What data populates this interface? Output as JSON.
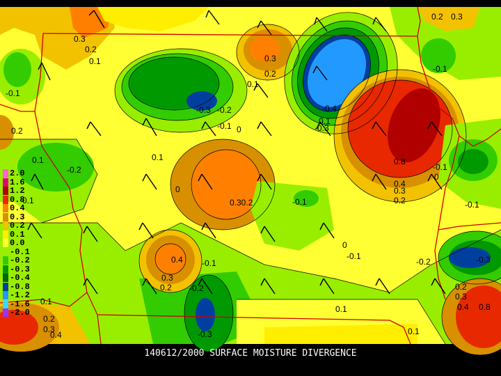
{
  "product": {
    "caption": "140612/2000 SURFACE MOISTURE DIVERGENCE"
  },
  "legend": {
    "items": [
      {
        "label": "2.0",
        "color": "#ff66cc"
      },
      {
        "label": "1.6",
        "color": "#e0007a"
      },
      {
        "label": "1.2",
        "color": "#b00000"
      },
      {
        "label": "0.8",
        "color": "#e82800"
      },
      {
        "label": "0.4",
        "color": "#ff8000"
      },
      {
        "label": "0.3",
        "color": "#d89000"
      },
      {
        "label": "0.2",
        "color": "#f2c200"
      },
      {
        "label": "0.1",
        "color": "#ffee00"
      },
      {
        "label": "0.0",
        "color": "#ffff33"
      },
      {
        "label": "-0.1",
        "color": "#99ee00"
      },
      {
        "label": "-0.2",
        "color": "#33cc00"
      },
      {
        "label": "-0.3",
        "color": "#009900"
      },
      {
        "label": "-0.4",
        "color": "#006a00"
      },
      {
        "label": "-0.8",
        "color": "#003fa0"
      },
      {
        "label": "-1.2",
        "color": "#2299ff"
      },
      {
        "label": "-1.6",
        "color": "#33ddff"
      },
      {
        "label": "-2.0",
        "color": "#9933ff"
      }
    ]
  },
  "contour_labels": [
    "0.2",
    "0.3",
    "0.3",
    "0.2",
    "0.1",
    "0.3",
    "0.2",
    "-0.1",
    "0.1",
    "-0.3",
    "-0.2",
    "-0.1",
    "0",
    "0.1",
    "-0.4",
    "-0.3",
    "0.1",
    "0.8",
    "0.4",
    "0.3",
    "0.2",
    "-0.1",
    "0",
    "-0.1",
    "0.2",
    "0.1",
    "0",
    "0.30.2",
    "-0.1",
    "-0.2",
    "0.1",
    "0",
    "-0.1",
    "0.4",
    "0.3",
    "0.2",
    "-0.2",
    "-0.1",
    "-0.2",
    "-0.3",
    "-0.1",
    "0.2",
    "0.3",
    "0.8",
    "0.4",
    "0.1",
    "0.1",
    "0.2",
    "0.3",
    "0.4",
    "-0.3",
    "0.1"
  ]
}
